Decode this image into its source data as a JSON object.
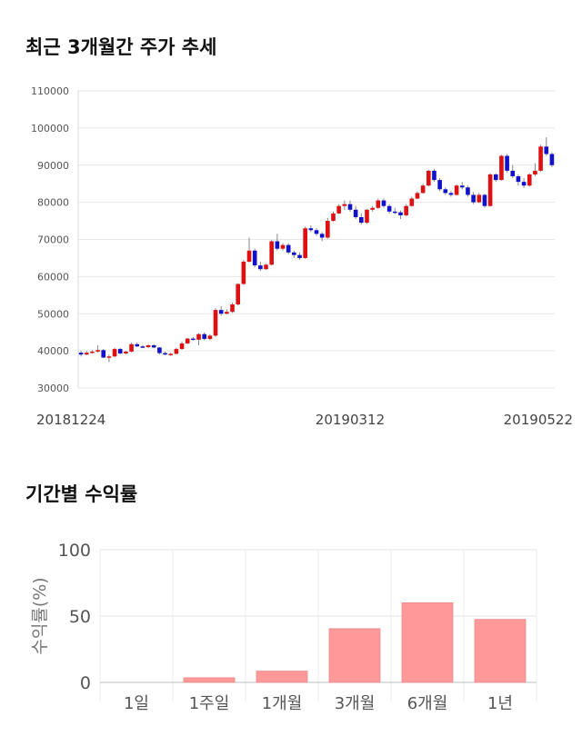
{
  "sections": {
    "price_title": "최근 3개월간 주가 추세",
    "returns_title": "기간별 수익률"
  },
  "chart_data": [
    {
      "type": "candlestick",
      "title": "최근 3개월간 주가 추세",
      "ylim": [
        30000,
        110000
      ],
      "yticks": [
        30000,
        40000,
        50000,
        60000,
        70000,
        80000,
        90000,
        100000,
        110000
      ],
      "xtick_labels": [
        "20181224",
        "20190312",
        "20190522"
      ],
      "xtick_index": [
        0,
        48,
        98
      ],
      "grid": true,
      "up_color": "#dd1111",
      "down_color": "#1111cc",
      "ohlc": [
        [
          39500,
          40000,
          38500,
          39000
        ],
        [
          39000,
          40000,
          38800,
          39500
        ],
        [
          39500,
          40200,
          39200,
          39800
        ],
        [
          39800,
          41500,
          39500,
          40200
        ],
        [
          40200,
          40500,
          38000,
          38200
        ],
        [
          38200,
          39000,
          37000,
          38500
        ],
        [
          38500,
          40800,
          38300,
          40500
        ],
        [
          40500,
          40800,
          39000,
          39300
        ],
        [
          39300,
          40000,
          39000,
          39800
        ],
        [
          39800,
          42200,
          39600,
          41800
        ],
        [
          41800,
          42300,
          41000,
          41200
        ],
        [
          41200,
          41600,
          40800,
          41000
        ],
        [
          41000,
          41800,
          40800,
          41500
        ],
        [
          41500,
          41800,
          40700,
          40900
        ],
        [
          40900,
          41000,
          39000,
          39400
        ],
        [
          39400,
          39800,
          38800,
          39000
        ],
        [
          39000,
          39500,
          38600,
          39200
        ],
        [
          39200,
          40800,
          39000,
          40500
        ],
        [
          40500,
          42500,
          40300,
          42000
        ],
        [
          42000,
          43500,
          41800,
          43300
        ],
        [
          43300,
          43800,
          42800,
          43000
        ],
        [
          43000,
          44800,
          41500,
          44500
        ],
        [
          44500,
          45000,
          42800,
          43200
        ],
        [
          43200,
          44500,
          42800,
          44100
        ],
        [
          44100,
          51500,
          43800,
          51000
        ],
        [
          51000,
          52000,
          49500,
          50000
        ],
        [
          50000,
          51200,
          49800,
          50500
        ],
        [
          50500,
          53000,
          50200,
          52500
        ],
        [
          52500,
          58200,
          52200,
          58000
        ],
        [
          58000,
          64500,
          57800,
          64000
        ],
        [
          64000,
          70500,
          63800,
          67000
        ],
        [
          67000,
          67500,
          62500,
          63000
        ],
        [
          63000,
          64000,
          61500,
          62000
        ],
        [
          62000,
          63500,
          61800,
          63200
        ],
        [
          63200,
          69800,
          63000,
          69500
        ],
        [
          69500,
          71500,
          67000,
          67500
        ],
        [
          67500,
          69000,
          67000,
          68500
        ],
        [
          68500,
          69000,
          66000,
          66500
        ],
        [
          66500,
          67000,
          65000,
          65800
        ],
        [
          65800,
          66500,
          64500,
          65000
        ],
        [
          65000,
          73500,
          64800,
          73000
        ],
        [
          73000,
          73800,
          72000,
          72500
        ],
        [
          72500,
          73000,
          71000,
          71500
        ],
        [
          71500,
          72000,
          69500,
          70500
        ],
        [
          70500,
          75800,
          70200,
          75000
        ],
        [
          75000,
          77500,
          74800,
          77000
        ],
        [
          77000,
          79500,
          76800,
          79000
        ],
        [
          79000,
          80500,
          78000,
          79500
        ],
        [
          79500,
          80500,
          77500,
          78000
        ],
        [
          78000,
          79000,
          75500,
          76000
        ],
        [
          76000,
          77000,
          74000,
          74500
        ],
        [
          74500,
          78200,
          74200,
          78000
        ],
        [
          78000,
          79000,
          77500,
          78500
        ],
        [
          78500,
          81000,
          78200,
          80500
        ],
        [
          80500,
          81000,
          78500,
          79000
        ],
        [
          79000,
          79500,
          77000,
          77500
        ],
        [
          77500,
          78500,
          76800,
          77300
        ],
        [
          77300,
          77800,
          75500,
          76500
        ],
        [
          76500,
          79500,
          76200,
          79000
        ],
        [
          79000,
          81500,
          78800,
          81000
        ],
        [
          81000,
          83000,
          80800,
          82500
        ],
        [
          82500,
          85000,
          82300,
          84500
        ],
        [
          84500,
          88700,
          84300,
          88500
        ],
        [
          88500,
          89000,
          85500,
          86000
        ],
        [
          86000,
          86500,
          83000,
          83500
        ],
        [
          83500,
          84000,
          82000,
          82500
        ],
        [
          82500,
          83000,
          81500,
          82000
        ],
        [
          82000,
          84800,
          81800,
          84500
        ],
        [
          84500,
          85500,
          83500,
          84000
        ],
        [
          84000,
          84500,
          81500,
          82000
        ],
        [
          82000,
          82800,
          79500,
          80000
        ],
        [
          80000,
          82500,
          79800,
          82000
        ],
        [
          82000,
          82300,
          78500,
          79000
        ],
        [
          79000,
          87800,
          78800,
          87500
        ],
        [
          87500,
          87800,
          85500,
          86000
        ],
        [
          86000,
          92800,
          85800,
          92500
        ],
        [
          92500,
          93000,
          88000,
          88500
        ],
        [
          88500,
          90000,
          86500,
          87000
        ],
        [
          87000,
          87500,
          84500,
          85500
        ],
        [
          85500,
          86500,
          83800,
          84500
        ],
        [
          84500,
          87800,
          84200,
          87500
        ],
        [
          87500,
          90500,
          87000,
          88500
        ],
        [
          88500,
          95500,
          88200,
          95000
        ],
        [
          95000,
          97500,
          92500,
          93000
        ],
        [
          93000,
          93500,
          89500,
          90000
        ]
      ]
    },
    {
      "type": "bar",
      "categories": [
        "1일",
        "1주일",
        "1개월",
        "3개월",
        "6개월",
        "1년"
      ],
      "values": [
        0,
        3.5,
        8.5,
        40.5,
        60,
        47.5
      ],
      "ylabel": "수익률(%)",
      "ylim": [
        0,
        100
      ],
      "yticks": [
        0,
        50,
        100
      ],
      "grid": true,
      "bar_color": "#ff9999"
    }
  ]
}
